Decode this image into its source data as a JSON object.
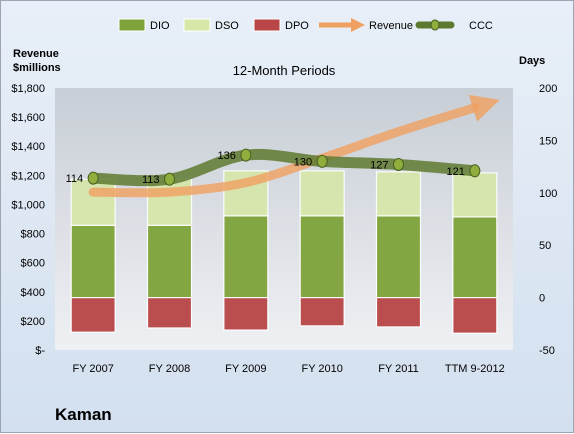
{
  "chart_data": {
    "type": "bar",
    "title": "12-Month Periods",
    "company": "Kaman",
    "ylabel_left_line1": "Revenue",
    "ylabel_left_line2": "$millions",
    "ylabel_right": "Days",
    "categories": [
      "FY 2007",
      "FY 2008",
      "FY 2009",
      "FY 2010",
      "FY 2011",
      "TTM 9-2012"
    ],
    "left_axis": {
      "min": 0,
      "max": 1800,
      "step": 200,
      "tick_labels": [
        "$-",
        "$200",
        "$400",
        "$600",
        "$800",
        "$1,000",
        "$1,200",
        "$1,400",
        "$1,600",
        "$1,800"
      ]
    },
    "right_axis": {
      "min": -50,
      "max": 200,
      "step": 50,
      "tick_labels": [
        "-50",
        "0",
        "50",
        "100",
        "150",
        "200"
      ]
    },
    "legend_position": "top",
    "legend": [
      {
        "name": "DIO",
        "kind": "bar",
        "color": "#7ea33a"
      },
      {
        "name": "DSO",
        "kind": "bar",
        "color": "#d6e7a8"
      },
      {
        "name": "DPO",
        "kind": "bar",
        "color": "#b84646"
      },
      {
        "name": "Revenue",
        "kind": "arrow",
        "color": "#f0a060"
      },
      {
        "name": "CCC",
        "kind": "line",
        "color": "#5e7a30"
      }
    ],
    "series": [
      {
        "name": "DIO",
        "axis": "right",
        "values": [
          69,
          69,
          78,
          78,
          78,
          77
        ]
      },
      {
        "name": "DSO",
        "axis": "right",
        "values": [
          44,
          44,
          43,
          43,
          42,
          42
        ]
      },
      {
        "name": "DPO",
        "axis": "right",
        "values": [
          -33,
          -29,
          -31,
          -27,
          -28,
          -34
        ]
      },
      {
        "name": "Revenue",
        "axis": "left",
        "values": [
          1085,
          1085,
          1150,
          1318,
          1500,
          1665
        ]
      },
      {
        "name": "CCC",
        "axis": "right",
        "values": [
          114,
          113,
          136,
          130,
          127,
          121
        ]
      }
    ],
    "data_labels_series": "CCC",
    "grid": false
  }
}
